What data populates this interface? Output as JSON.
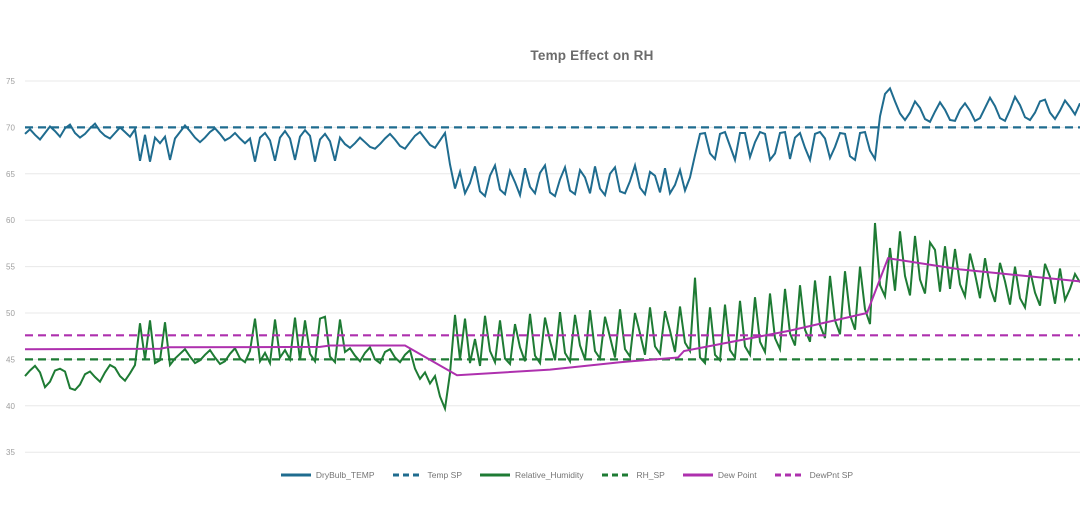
{
  "chart_data": {
    "type": "line",
    "title": "Temp Effect on RH",
    "xlabel": "",
    "ylabel": "",
    "ylim": [
      35,
      75
    ],
    "y_ticks": [
      35,
      40,
      45,
      50,
      55,
      60,
      65,
      70,
      75
    ],
    "x_axis_labels": "none",
    "grid": "horizontal",
    "legend_position": "bottom-center",
    "series": [
      {
        "name": "DryBulb_TEMP",
        "legend_label": "DryBulb_TEMP",
        "color": "#1f6c8f",
        "line_style": "solid",
        "values": [
          69.3,
          69.8,
          69.2,
          68.7,
          69.4,
          70.1,
          69.6,
          69.0,
          69.9,
          70.3,
          69.4,
          68.9,
          69.3,
          69.9,
          70.4,
          69.6,
          69.1,
          68.8,
          69.4,
          70.0,
          69.5,
          69.0,
          69.8,
          66.4,
          69.2,
          66.3,
          68.9,
          68.3,
          69.0,
          66.5,
          68.8,
          69.5,
          70.2,
          69.6,
          68.9,
          68.4,
          68.9,
          69.5,
          69.9,
          69.3,
          68.6,
          68.9,
          69.4,
          68.8,
          68.3,
          68.8,
          66.3,
          68.9,
          69.4,
          68.6,
          66.4,
          68.9,
          69.6,
          68.8,
          66.5,
          69.0,
          69.7,
          69.1,
          66.3,
          68.7,
          69.3,
          68.5,
          66.4,
          68.9,
          68.2,
          67.8,
          68.3,
          68.9,
          68.4,
          67.9,
          67.7,
          68.2,
          68.8,
          69.3,
          68.7,
          68.0,
          67.7,
          68.4,
          69.1,
          69.5,
          68.8,
          68.1,
          67.8,
          68.6,
          69.4,
          66.0,
          63.4,
          65.2,
          62.9,
          64.0,
          65.8,
          63.1,
          62.6,
          64.8,
          65.9,
          63.3,
          62.8,
          65.3,
          64.1,
          62.7,
          65.6,
          63.6,
          62.9,
          65.1,
          65.9,
          63.0,
          62.6,
          64.4,
          65.7,
          63.2,
          62.8,
          65.4,
          64.6,
          62.9,
          65.8,
          63.4,
          62.7,
          65.0,
          65.7,
          63.1,
          62.9,
          64.2,
          65.9,
          63.5,
          62.8,
          65.2,
          64.8,
          63.0,
          65.6,
          62.9,
          63.8,
          65.4,
          63.2,
          64.6,
          67.0,
          69.3,
          69.4,
          67.2,
          66.6,
          69.3,
          69.5,
          68.0,
          66.5,
          69.4,
          69.4,
          66.8,
          68.4,
          69.5,
          69.3,
          66.5,
          67.2,
          69.4,
          69.5,
          66.6,
          68.9,
          69.4,
          67.8,
          66.5,
          69.3,
          69.5,
          68.8,
          66.7,
          67.9,
          69.4,
          69.3,
          66.9,
          66.5,
          69.4,
          69.5,
          67.5,
          66.6,
          71.2,
          73.6,
          74.2,
          72.8,
          71.5,
          70.8,
          71.6,
          72.8,
          72.1,
          70.9,
          70.6,
          71.7,
          72.7,
          71.9,
          70.8,
          70.7,
          71.9,
          72.6,
          71.8,
          70.7,
          71.0,
          72.1,
          73.2,
          72.3,
          71.0,
          70.7,
          71.9,
          73.3,
          72.4,
          71.1,
          70.8,
          71.6,
          72.8,
          73.0,
          71.6,
          70.9,
          71.8,
          72.9,
          72.2,
          71.4,
          72.6
        ]
      },
      {
        "name": "Temp SP",
        "legend_label": "Temp SP",
        "color": "#1f6c8f",
        "line_style": "dashed",
        "values": [
          70,
          70
        ]
      },
      {
        "name": "Relative_Humidity",
        "legend_label": "Relative_Humidity",
        "color": "#1e7b34",
        "line_style": "solid",
        "values": [
          43.2,
          43.8,
          44.3,
          43.6,
          42.0,
          42.6,
          43.8,
          44.0,
          43.7,
          41.9,
          41.7,
          42.3,
          43.4,
          43.7,
          43.1,
          42.6,
          43.6,
          44.4,
          44.1,
          43.2,
          42.7,
          43.5,
          44.4,
          48.9,
          45.0,
          49.2,
          44.6,
          44.9,
          49.0,
          44.4,
          45.1,
          45.6,
          46.1,
          45.3,
          44.6,
          44.9,
          45.5,
          46.0,
          45.2,
          44.5,
          44.8,
          45.6,
          46.2,
          45.1,
          44.7,
          45.9,
          49.4,
          44.8,
          45.7,
          44.6,
          49.3,
          45.2,
          46.0,
          45.0,
          49.5,
          44.9,
          49.2,
          45.6,
          44.8,
          49.4,
          49.6,
          45.3,
          44.7,
          49.3,
          45.8,
          46.2,
          45.4,
          44.8,
          45.7,
          46.3,
          45.0,
          44.6,
          45.8,
          46.1,
          45.2,
          44.7,
          45.5,
          46.0,
          44.0,
          42.9,
          43.6,
          42.4,
          43.2,
          41.0,
          39.7,
          43.5,
          49.8,
          45.0,
          49.4,
          44.6,
          47.2,
          44.3,
          49.7,
          45.9,
          44.7,
          49.2,
          45.1,
          44.5,
          48.8,
          46.3,
          44.8,
          49.9,
          45.4,
          44.6,
          49.5,
          47.0,
          44.9,
          50.1,
          45.7,
          44.8,
          49.8,
          46.5,
          45.0,
          50.3,
          45.9,
          45.1,
          49.6,
          47.4,
          45.2,
          50.4,
          46.1,
          45.3,
          50.0,
          47.8,
          45.5,
          50.6,
          46.4,
          45.6,
          50.2,
          48.1,
          45.8,
          50.7,
          46.8,
          45.9,
          53.8,
          45.2,
          44.6,
          50.6,
          45.5,
          44.9,
          50.9,
          46.0,
          45.2,
          51.3,
          46.4,
          45.5,
          51.7,
          46.9,
          45.8,
          52.1,
          47.3,
          46.1,
          52.6,
          47.8,
          46.5,
          53.0,
          48.2,
          46.9,
          53.5,
          48.7,
          47.3,
          54.0,
          49.2,
          47.7,
          54.5,
          49.8,
          48.2,
          55.0,
          50.4,
          48.8,
          59.7,
          53.0,
          51.8,
          57.0,
          52.4,
          58.8,
          54.0,
          51.9,
          58.3,
          53.6,
          52.1,
          57.6,
          56.8,
          52.3,
          57.2,
          52.6,
          56.9,
          53.1,
          51.8,
          56.4,
          54.2,
          51.6,
          55.9,
          52.8,
          51.2,
          55.4,
          53.4,
          50.9,
          55.0,
          51.6,
          50.6,
          54.6,
          52.2,
          50.8,
          55.3,
          53.9,
          51.0,
          54.8,
          51.4,
          52.6,
          54.2,
          53.3
        ]
      },
      {
        "name": "RH_SP",
        "legend_label": "RH_SP",
        "color": "#1e7b34",
        "line_style": "dashed",
        "values": [
          45,
          45
        ]
      },
      {
        "name": "Dew Point",
        "legend_label": "Dew Point",
        "color": "#ae30ae",
        "line_style": "solid",
        "points": [
          [
            25,
            46.1
          ],
          [
            160,
            46.15
          ],
          [
            168,
            46.3
          ],
          [
            320,
            46.35
          ],
          [
            330,
            46.5
          ],
          [
            405,
            46.5
          ],
          [
            457,
            43.3
          ],
          [
            550,
            43.9
          ],
          [
            620,
            44.7
          ],
          [
            678,
            45.2
          ],
          [
            684,
            45.9
          ],
          [
            790,
            48.1
          ],
          [
            867,
            50.0
          ],
          [
            888,
            55.9
          ],
          [
            960,
            54.7
          ],
          [
            1080,
            53.4
          ]
        ]
      },
      {
        "name": "DewPnt SP",
        "legend_label": "DewPnt SP",
        "color": "#ae30ae",
        "line_style": "dashed",
        "values": [
          47.6,
          47.6
        ]
      }
    ]
  },
  "style": {
    "background": "#ffffff",
    "gridline_color": "#e8e8e8",
    "tick_label_color": "#9e9e9e",
    "title_color": "#6b6b6b",
    "legend_label_color": "#757575"
  }
}
